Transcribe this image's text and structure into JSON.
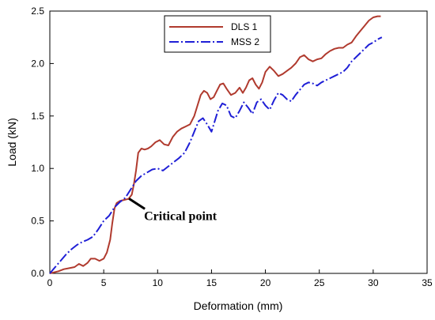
{
  "chart_data": {
    "type": "line",
    "xlabel": "Deformation (mm)",
    "ylabel": "Load (kN)",
    "xlim": [
      0,
      35
    ],
    "ylim": [
      0,
      2.5
    ],
    "x_ticks": [
      "0",
      "5",
      "10",
      "15",
      "20",
      "25",
      "30",
      "35"
    ],
    "y_ticks": [
      "0.0",
      "0.5",
      "1.0",
      "1.5",
      "2.0",
      "2.5"
    ],
    "grid": false,
    "legend_position": "top-center",
    "series": [
      {
        "name": "DLS 1",
        "color": "#b03a2e",
        "line_style": "solid",
        "x": [
          0,
          0.8,
          1.3,
          1.8,
          2.3,
          2.7,
          3.1,
          3.5,
          3.8,
          4.2,
          4.6,
          5.0,
          5.3,
          5.6,
          5.8,
          6.0,
          6.2,
          6.5,
          6.9,
          7.3,
          7.6,
          7.8,
          8.0,
          8.2,
          8.5,
          8.8,
          9.1,
          9.4,
          9.8,
          10.2,
          10.6,
          11.0,
          11.4,
          11.8,
          12.2,
          12.6,
          13.0,
          13.4,
          13.7,
          14.0,
          14.3,
          14.6,
          14.9,
          15.2,
          15.5,
          15.8,
          16.1,
          16.4,
          16.8,
          17.2,
          17.6,
          17.9,
          18.2,
          18.5,
          18.8,
          19.1,
          19.4,
          19.7,
          20.0,
          20.4,
          20.8,
          21.2,
          21.6,
          22.0,
          22.4,
          22.8,
          23.2,
          23.6,
          24.0,
          24.4,
          24.8,
          25.2,
          25.6,
          26.0,
          26.4,
          26.8,
          27.2,
          27.6,
          28.0,
          28.4,
          28.8,
          29.2,
          29.6,
          30.0,
          30.4,
          30.7
        ],
        "y": [
          0.0,
          0.02,
          0.04,
          0.05,
          0.06,
          0.09,
          0.07,
          0.1,
          0.14,
          0.14,
          0.12,
          0.14,
          0.2,
          0.32,
          0.48,
          0.62,
          0.67,
          0.69,
          0.7,
          0.71,
          0.75,
          0.85,
          0.98,
          1.15,
          1.19,
          1.18,
          1.19,
          1.21,
          1.25,
          1.27,
          1.23,
          1.22,
          1.3,
          1.35,
          1.38,
          1.4,
          1.42,
          1.5,
          1.6,
          1.7,
          1.74,
          1.72,
          1.66,
          1.68,
          1.74,
          1.8,
          1.81,
          1.76,
          1.7,
          1.72,
          1.77,
          1.72,
          1.77,
          1.84,
          1.86,
          1.8,
          1.76,
          1.82,
          1.92,
          1.97,
          1.93,
          1.88,
          1.9,
          1.93,
          1.96,
          2.0,
          2.06,
          2.08,
          2.04,
          2.02,
          2.04,
          2.05,
          2.09,
          2.12,
          2.14,
          2.15,
          2.15,
          2.18,
          2.2,
          2.26,
          2.31,
          2.36,
          2.41,
          2.44,
          2.45,
          2.45
        ]
      },
      {
        "name": "MSS 2",
        "color": "#1f1fd6",
        "line_style": "dashdot",
        "x": [
          0,
          0.5,
          1.0,
          1.5,
          2.0,
          2.5,
          3.0,
          3.5,
          4.0,
          4.5,
          5.0,
          5.5,
          6.0,
          6.5,
          7.0,
          7.5,
          8.0,
          8.5,
          9.0,
          9.5,
          10.0,
          10.5,
          11.0,
          11.5,
          12.0,
          12.5,
          13.0,
          13.4,
          13.8,
          14.2,
          14.6,
          15.0,
          15.3,
          15.6,
          16.0,
          16.4,
          16.8,
          17.2,
          17.6,
          18.0,
          18.4,
          18.8,
          19.2,
          19.6,
          20.0,
          20.4,
          20.8,
          21.2,
          21.6,
          22.0,
          22.4,
          22.8,
          23.2,
          23.6,
          24.0,
          24.4,
          24.8,
          25.2,
          25.6,
          26.0,
          26.4,
          26.8,
          27.2,
          27.6,
          28.0,
          28.4,
          28.8,
          29.2,
          29.6,
          30.0,
          30.4,
          30.8
        ],
        "y": [
          0.0,
          0.06,
          0.12,
          0.18,
          0.23,
          0.27,
          0.3,
          0.32,
          0.35,
          0.42,
          0.5,
          0.55,
          0.63,
          0.68,
          0.72,
          0.8,
          0.88,
          0.93,
          0.96,
          0.99,
          1.0,
          0.98,
          1.02,
          1.06,
          1.1,
          1.15,
          1.25,
          1.35,
          1.45,
          1.48,
          1.42,
          1.35,
          1.45,
          1.55,
          1.62,
          1.6,
          1.5,
          1.48,
          1.55,
          1.63,
          1.58,
          1.52,
          1.63,
          1.66,
          1.6,
          1.56,
          1.65,
          1.72,
          1.7,
          1.66,
          1.64,
          1.7,
          1.75,
          1.8,
          1.82,
          1.81,
          1.79,
          1.82,
          1.84,
          1.86,
          1.88,
          1.9,
          1.92,
          1.96,
          2.02,
          2.06,
          2.1,
          2.14,
          2.18,
          2.2,
          2.23,
          2.25
        ]
      }
    ],
    "annotations": [
      {
        "text": "Critical point",
        "point_x": 7.2,
        "point_y": 0.72
      }
    ]
  }
}
